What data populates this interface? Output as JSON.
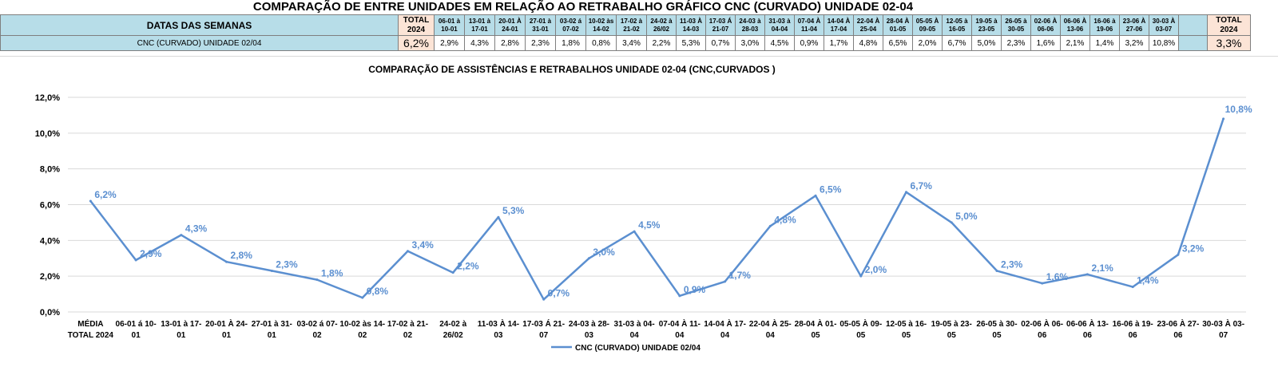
{
  "sheet": {
    "title": "COMPARAÇÃO DE ENTRE UNIDADES EM RELAÇÃO AO RETRABALHO GRÁFICO CNC (CURVADO) UNIDADE 02-04",
    "header_label": "DATAS DAS SEMANAS",
    "total_header": [
      "TOTAL",
      "2024"
    ],
    "weeks": [
      [
        "06-01 à",
        "10-01"
      ],
      [
        "13-01 à",
        "17-01"
      ],
      [
        "20-01 À",
        "24-01"
      ],
      [
        "27-01 à",
        "31-01"
      ],
      [
        "03-02 á",
        "07-02"
      ],
      [
        "10-02 às",
        "14-02"
      ],
      [
        "17-02 à",
        "21-02"
      ],
      [
        "24-02 à",
        "26/02"
      ],
      [
        "11-03 À",
        "14-03"
      ],
      [
        "17-03 Á",
        "21-07"
      ],
      [
        "24-03 à",
        "28-03"
      ],
      [
        "31-03 à",
        "04-04"
      ],
      [
        "07-04 À",
        "11-04"
      ],
      [
        "14-04 À",
        "17-04"
      ],
      [
        "22-04 À",
        "25-04"
      ],
      [
        "28-04 À",
        "01-05"
      ],
      [
        "05-05 À",
        "09-05"
      ],
      [
        "12-05 à",
        "16-05"
      ],
      [
        "19-05 à",
        "23-05"
      ],
      [
        "26-05 à",
        "30-05"
      ],
      [
        "02-06 À",
        "06-06"
      ],
      [
        "06-06 À",
        "13-06"
      ],
      [
        "16-06 à",
        "19-06"
      ],
      [
        "23-06 À",
        "27-06"
      ],
      [
        "30-03 À",
        "03-07"
      ]
    ],
    "row_label": "CNC (CURVADO) UNIDADE 02/04",
    "total_left": "6,2%",
    "row_values": [
      "2,9%",
      "4,3%",
      "2,8%",
      "2,3%",
      "1,8%",
      "0,8%",
      "3,4%",
      "2,2%",
      "5,3%",
      "0,7%",
      "3,0%",
      "4,5%",
      "0,9%",
      "1,7%",
      "4,8%",
      "6,5%",
      "2,0%",
      "6,7%",
      "5,0%",
      "2,3%",
      "1,6%",
      "2,1%",
      "1,4%",
      "3,2%",
      "10,8%"
    ],
    "total_right": "3,3%"
  },
  "colors": {
    "line": "#5b8fd0",
    "label": "#5b8fd0",
    "grid": "#d9d9d9",
    "header_bg": "#b7dde8",
    "total_bg": "#fce4d6"
  },
  "chart_data": {
    "type": "line",
    "title": "COMPARAÇÃO DE ASSISTÊNCIAS E RETRABALHOS UNIDADE 02-04  (CNC,CURVADOS )",
    "categories": [
      [
        "MÉDIA",
        "TOTAL 2024"
      ],
      [
        "06-01 á 10-",
        "01"
      ],
      [
        "13-01 à 17-",
        "01"
      ],
      [
        "20-01 À 24-",
        "01"
      ],
      [
        "27-01 à 31-",
        "01"
      ],
      [
        "03-02 á 07-",
        "02"
      ],
      [
        "10-02 às 14-",
        "02"
      ],
      [
        "17-02 à 21-",
        "02"
      ],
      [
        "24-02 à",
        "26/02"
      ],
      [
        "11-03 À 14-",
        "03"
      ],
      [
        "17-03 Á 21-",
        "07"
      ],
      [
        "24-03 à 28-",
        "03"
      ],
      [
        "31-03 à 04-",
        "04"
      ],
      [
        "07-04 À 11-",
        "04"
      ],
      [
        "14-04 À 17-",
        "04"
      ],
      [
        "22-04 À 25-",
        "04"
      ],
      [
        "28-04 À 01-",
        "05"
      ],
      [
        "05-05 À 09-",
        "05"
      ],
      [
        "12-05 à 16-",
        "05"
      ],
      [
        "19-05 à 23-",
        "05"
      ],
      [
        "26-05 à 30-",
        "05"
      ],
      [
        "02-06 À 06-",
        "06"
      ],
      [
        "06-06 À 13-",
        "06"
      ],
      [
        "16-06 à 19-",
        "06"
      ],
      [
        "23-06 À 27-",
        "06"
      ],
      [
        "30-03 À 03-",
        "07"
      ]
    ],
    "series": [
      {
        "name": "CNC (CURVADO) UNIDADE 02/04",
        "values": [
          6.2,
          2.9,
          4.3,
          2.8,
          2.3,
          1.8,
          0.8,
          3.4,
          2.2,
          5.3,
          0.7,
          3.0,
          4.5,
          0.9,
          1.7,
          4.8,
          6.5,
          2.0,
          6.7,
          5.0,
          2.3,
          1.6,
          2.1,
          1.4,
          3.2,
          10.8
        ],
        "labels": [
          "6,2%",
          "2,9%",
          "4,3%",
          "2,8%",
          "2,3%",
          "1,8%",
          "0,8%",
          "3,4%",
          "2,2%",
          "5,3%",
          "0,7%",
          "3,0%",
          "4,5%",
          "0,9%",
          "1,7%",
          "4,8%",
          "6,5%",
          "2,0%",
          "6,7%",
          "5,0%",
          "2,3%",
          "1,6%",
          "2,1%",
          "1,4%",
          "3,2%",
          "10,8%"
        ]
      }
    ],
    "yticks": [
      "0,0%",
      "2,0%",
      "4,0%",
      "6,0%",
      "8,0%",
      "10,0%",
      "12,0%"
    ],
    "ylim": [
      0,
      12
    ],
    "grid": true,
    "legend": "bottom"
  }
}
